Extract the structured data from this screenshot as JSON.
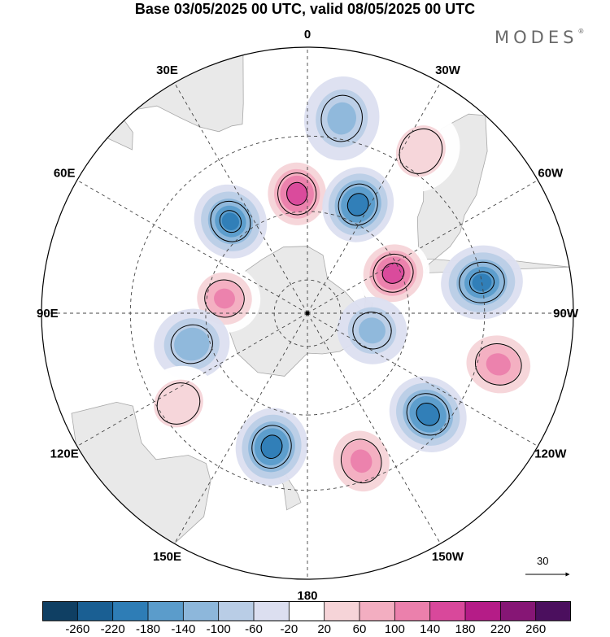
{
  "title": "Base 03/05/2025 00 UTC, valid 08/05/2025 00 UTC",
  "brand": "MODES",
  "brand_mark": "®",
  "projection": "south-polar-stereographic",
  "longitude_labels": [
    "0",
    "30E",
    "60E",
    "90E",
    "120E",
    "150E",
    "180",
    "150W",
    "120W",
    "90W",
    "60W",
    "30W"
  ],
  "vector_scale_label": "30",
  "colorbar": {
    "ticks": [
      "-260",
      "-220",
      "-180",
      "-140",
      "-100",
      "-60",
      "-20",
      "20",
      "60",
      "100",
      "140",
      "180",
      "220",
      "260"
    ],
    "colors": [
      "#0f3f63",
      "#1a5f93",
      "#2e7db6",
      "#5b9ccb",
      "#8db7db",
      "#b9cde6",
      "#dcdff0",
      "#ffffff",
      "#f6d4d8",
      "#f3aec1",
      "#eb80ac",
      "#d9489b",
      "#b51c87",
      "#861675",
      "#4b0f5e"
    ]
  },
  "anomalies": [
    {
      "kind": "positive",
      "level": 200,
      "lon": 5,
      "lat": -55
    },
    {
      "kind": "negative",
      "level": -180,
      "lon": 40,
      "lat": -55
    },
    {
      "kind": "positive",
      "level": 140,
      "lon": 80,
      "lat": -65
    },
    {
      "kind": "negative",
      "level": -120,
      "lon": 105,
      "lat": -55
    },
    {
      "kind": "positive",
      "level": 80,
      "lon": 125,
      "lat": -45
    },
    {
      "kind": "negative",
      "level": -200,
      "lon": 165,
      "lat": -50
    },
    {
      "kind": "positive",
      "level": 140,
      "lon": -160,
      "lat": -45
    },
    {
      "kind": "negative",
      "level": -200,
      "lon": -130,
      "lat": -45
    },
    {
      "kind": "positive",
      "level": 140,
      "lon": -105,
      "lat": -35
    },
    {
      "kind": "negative",
      "level": -180,
      "lon": -80,
      "lat": -40
    },
    {
      "kind": "positive",
      "level": 200,
      "lon": -65,
      "lat": -62
    },
    {
      "kind": "negative",
      "level": -200,
      "lon": -25,
      "lat": -55
    },
    {
      "kind": "positive",
      "level": 80,
      "lon": -35,
      "lat": -35
    },
    {
      "kind": "negative",
      "level": -100,
      "lon": -10,
      "lat": -35
    },
    {
      "kind": "negative",
      "level": -100,
      "lon": -105,
      "lat": -70
    }
  ]
}
